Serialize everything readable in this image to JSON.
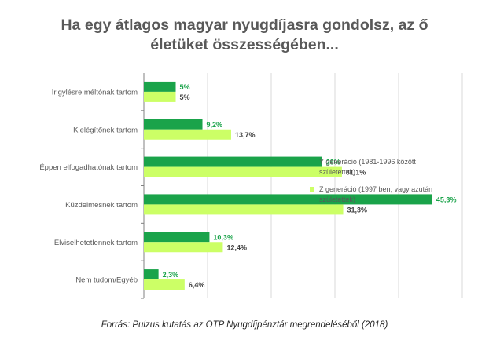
{
  "title": {
    "line1": "Ha egy átlagos magyar nyugdíjasra gondolsz, az ő",
    "line2": "életüket összességében..."
  },
  "source": "Forrás: Pulzus kutatás az OTP Nyugdíjpénztár megrendeléséből (2018)",
  "legend": [
    {
      "label_line1": "Y generáció (1981-1996 között",
      "label_line2": "születettek)",
      "color": "#1aa34a"
    },
    {
      "label_line1": "Z generáció (1997 ben, vagy azután",
      "label_line2": "születettek)",
      "color": "#ccff66"
    }
  ],
  "chart_data": {
    "type": "bar",
    "orientation": "horizontal",
    "title": "Ha egy átlagos magyar nyugdíjasra gondolsz, az ő életüket összességében...",
    "categories": [
      "Irigylésre méltónak tartom",
      "Kielégítőnek tartom",
      "Éppen elfogadhatónak tartom",
      "Küzdelmesnek tartom",
      "Elviselhetetlennek tartom",
      "Nem tudom/Egyéb"
    ],
    "series": [
      {
        "name": "Y generáció (1981-1996 között születettek)",
        "color": "#1aa34a",
        "label_color": "#1aa34a",
        "values": [
          5,
          9.2,
          28,
          45.3,
          10.3,
          2.3
        ],
        "labels": [
          "5%",
          "9,2%",
          "28%",
          "45,3%",
          "10,3%",
          "2,3%"
        ]
      },
      {
        "name": "Z generáció (1997 ben, vagy azután születettek)",
        "color": "#ccff66",
        "label_color": "#404040",
        "values": [
          5,
          13.7,
          31.1,
          31.3,
          12.4,
          6.4
        ],
        "labels": [
          "5%",
          "13,7%",
          "31,1%",
          "31,3%",
          "12,4%",
          "6,4%"
        ]
      }
    ],
    "xlim": [
      0,
      50
    ],
    "grid": true,
    "legend_position": "right"
  }
}
